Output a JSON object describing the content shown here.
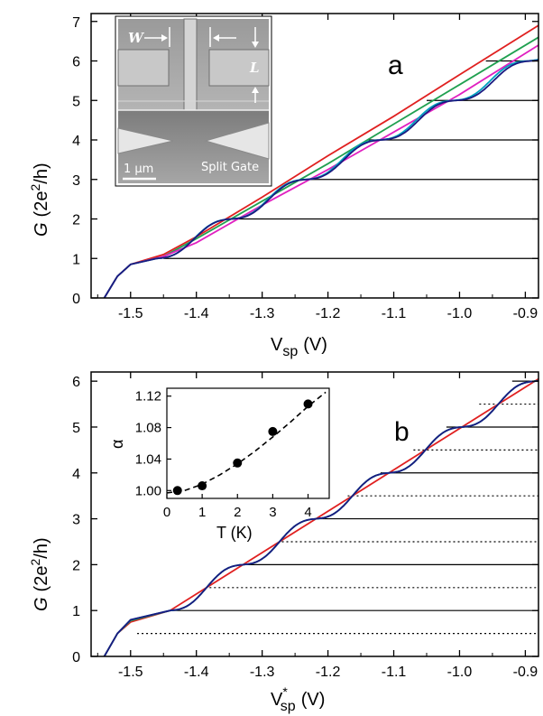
{
  "chart_data": [
    {
      "panel": "a",
      "type": "line",
      "panel_label": "a",
      "xlabel_main": "V",
      "xlabel_sub": "sp",
      "xlabel_unit": "(V)",
      "ylabel_italic": "G",
      "ylabel_rest": "(2e",
      "ylabel_sup": "2",
      "ylabel_tail": "/h)",
      "xlim": [
        -1.56,
        -0.88
      ],
      "ylim": [
        0,
        7.2
      ],
      "xticks": [
        -1.5,
        -1.4,
        -1.3,
        -1.2,
        -1.1,
        -1.0,
        -0.9
      ],
      "xtick_labels": [
        "-1.5",
        "-1.4",
        "-1.3",
        "-1.2",
        "-1.1",
        "-1.0",
        "-0.9"
      ],
      "yticks": [
        0,
        1,
        2,
        3,
        4,
        5,
        6,
        7
      ],
      "ytick_labels": [
        "0",
        "1",
        "2",
        "3",
        "4",
        "5",
        "6",
        "7"
      ],
      "plateau_lines": [
        {
          "y": 1,
          "x_from": -1.45
        },
        {
          "y": 2,
          "x_from": -1.35
        },
        {
          "y": 3,
          "x_from": -1.24
        },
        {
          "y": 4,
          "x_from": -1.14
        },
        {
          "y": 5,
          "x_from": -1.05
        },
        {
          "y": 6,
          "x_from": -0.96
        }
      ],
      "series": [
        {
          "color": "#e02020",
          "curve_type": "linear",
          "points": [
            [
              -1.54,
              0
            ],
            [
              -1.52,
              0.55
            ],
            [
              -1.5,
              0.85
            ],
            [
              -1.45,
              1.1
            ],
            [
              -1.4,
              1.55
            ],
            [
              -1.3,
              2.55
            ],
            [
              -1.2,
              3.6
            ],
            [
              -1.1,
              4.6
            ],
            [
              -1.0,
              5.65
            ],
            [
              -0.88,
              6.9
            ]
          ]
        },
        {
          "color": "#20a050",
          "curve_type": "linear",
          "points": [
            [
              -1.54,
              0
            ],
            [
              -1.52,
              0.55
            ],
            [
              -1.5,
              0.85
            ],
            [
              -1.45,
              1.05
            ],
            [
              -1.4,
              1.5
            ],
            [
              -1.3,
              2.45
            ],
            [
              -1.2,
              3.4
            ],
            [
              -1.1,
              4.4
            ],
            [
              -1.0,
              5.4
            ],
            [
              -0.88,
              6.6
            ]
          ]
        },
        {
          "color": "#e020c0",
          "curve_type": "linear",
          "points": [
            [
              -1.54,
              0
            ],
            [
              -1.52,
              0.55
            ],
            [
              -1.5,
              0.85
            ],
            [
              -1.45,
              1.05
            ],
            [
              -1.4,
              1.4
            ],
            [
              -1.3,
              2.35
            ],
            [
              -1.2,
              3.25
            ],
            [
              -1.1,
              4.2
            ],
            [
              -1.0,
              5.15
            ],
            [
              -0.88,
              6.4
            ]
          ]
        },
        {
          "color": "#00a0c0",
          "curve_type": "quantized",
          "points": [
            [
              -1.54,
              0
            ],
            [
              -1.52,
              0.55
            ],
            [
              -1.5,
              0.85
            ],
            [
              -1.46,
              1.0
            ],
            [
              -0.88,
              6.15
            ]
          ]
        },
        {
          "color": "#1a1a80",
          "curve_type": "quantized",
          "points": [
            [
              -1.54,
              0
            ],
            [
              -1.52,
              0.55
            ],
            [
              -1.5,
              0.85
            ],
            [
              -1.46,
              1.0
            ],
            [
              -0.88,
              6.1
            ]
          ]
        }
      ],
      "inset": {
        "width_label": "W",
        "length_label": "L",
        "scale_bar": "1 μm",
        "gate_label": "Split Gate"
      }
    },
    {
      "panel": "b",
      "type": "line",
      "panel_label": "b",
      "xlabel_main": "V",
      "xlabel_star": "*",
      "xlabel_sub": "sp",
      "xlabel_unit": "(V)",
      "ylabel_italic": "G",
      "ylabel_rest": "(2e",
      "ylabel_sup": "2",
      "ylabel_tail": "/h)",
      "xlim": [
        -1.56,
        -0.88
      ],
      "ylim": [
        0,
        6.2
      ],
      "xticks": [
        -1.5,
        -1.4,
        -1.3,
        -1.2,
        -1.1,
        -1.0,
        -0.9
      ],
      "xtick_labels": [
        "-1.5",
        "-1.4",
        "-1.3",
        "-1.2",
        "-1.1",
        "-1.0",
        "-0.9"
      ],
      "yticks": [
        0,
        1,
        2,
        3,
        4,
        5,
        6
      ],
      "ytick_labels": [
        "0",
        "1",
        "2",
        "3",
        "4",
        "5",
        "6"
      ],
      "solid_lines": [
        {
          "y": 1,
          "x_from": -1.44
        },
        {
          "y": 2,
          "x_from": -1.33
        },
        {
          "y": 3,
          "x_from": -1.22
        },
        {
          "y": 4,
          "x_from": -1.12
        },
        {
          "y": 5,
          "x_from": -1.02
        },
        {
          "y": 6,
          "x_from": -0.92
        }
      ],
      "dotted_lines": [
        {
          "y": 0.5,
          "x_from": -1.49
        },
        {
          "y": 1.5,
          "x_from": -1.38
        },
        {
          "y": 2.5,
          "x_from": -1.27
        },
        {
          "y": 3.5,
          "x_from": -1.17
        },
        {
          "y": 4.5,
          "x_from": -1.07
        },
        {
          "y": 5.5,
          "x_from": -0.97
        }
      ],
      "series": [
        {
          "color": "#e02020",
          "curve_type": "linear",
          "points": [
            [
              -1.54,
              0
            ],
            [
              -1.52,
              0.5
            ],
            [
              -1.5,
              0.75
            ],
            [
              -1.44,
              1.0
            ],
            [
              -0.88,
              6.05
            ]
          ]
        },
        {
          "color": "#20a050",
          "curve_type": "quantized",
          "points": [
            [
              -1.54,
              0
            ],
            [
              -1.52,
              0.5
            ],
            [
              -1.5,
              0.78
            ],
            [
              -1.44,
              1.0
            ],
            [
              -0.88,
              6.05
            ]
          ]
        },
        {
          "color": "#00a0c0",
          "curve_type": "quantized",
          "points": [
            [
              -1.54,
              0
            ],
            [
              -1.52,
              0.5
            ],
            [
              -1.5,
              0.8
            ],
            [
              -1.44,
              1.0
            ],
            [
              -0.88,
              6.05
            ]
          ]
        },
        {
          "color": "#1a1a80",
          "curve_type": "quantized",
          "points": [
            [
              -1.54,
              0
            ],
            [
              -1.52,
              0.5
            ],
            [
              -1.5,
              0.8
            ],
            [
              -1.44,
              1.0
            ],
            [
              -0.88,
              6.05
            ]
          ]
        }
      ],
      "inset": {
        "type": "scatter",
        "xlabel": "T (K)",
        "ylabel": "α",
        "xlim": [
          0,
          4.6
        ],
        "ylim": [
          0.99,
          1.13
        ],
        "xticks": [
          0,
          1,
          2,
          3,
          4
        ],
        "xtick_labels": [
          "0",
          "1",
          "2",
          "3",
          "4"
        ],
        "yticks": [
          1.0,
          1.04,
          1.08,
          1.12
        ],
        "ytick_labels": [
          "1.00",
          "1.04",
          "1.08",
          "1.12"
        ],
        "x": [
          0.3,
          1.0,
          2.0,
          3.0,
          4.0
        ],
        "y": [
          1.0,
          1.006,
          1.035,
          1.075,
          1.11
        ],
        "fit_x": [
          0,
          0.5,
          1,
          1.5,
          2,
          2.5,
          3,
          3.5,
          4,
          4.5
        ],
        "fit_y": [
          0.997,
          1.0,
          1.008,
          1.02,
          1.034,
          1.05,
          1.068,
          1.087,
          1.107,
          1.125
        ]
      }
    }
  ]
}
